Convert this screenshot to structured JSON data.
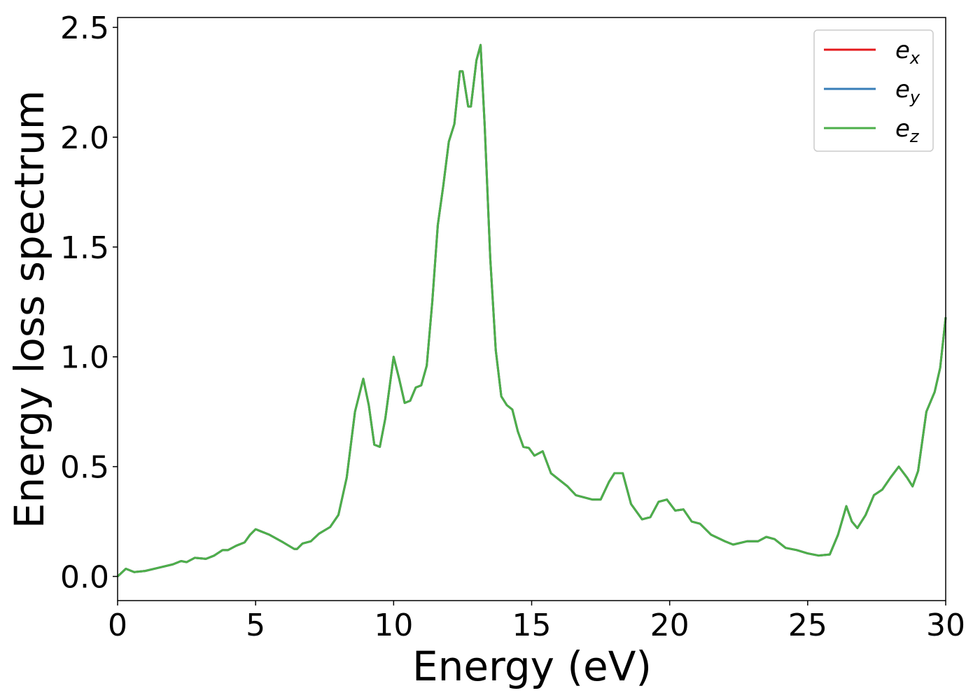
{
  "chart_data": {
    "type": "line",
    "xlabel": "Energy (eV)",
    "ylabel": "Energy loss spectrum",
    "x": [
      0,
      0.3,
      0.6,
      1.0,
      1.5,
      2.0,
      2.3,
      2.5,
      2.8,
      3.2,
      3.5,
      3.8,
      4.0,
      4.3,
      4.6,
      4.8,
      5.0,
      5.2,
      5.5,
      6.0,
      6.4,
      6.5,
      6.7,
      7.0,
      7.3,
      7.7,
      8.0,
      8.3,
      8.6,
      8.9,
      9.1,
      9.3,
      9.5,
      9.7,
      10.0,
      10.2,
      10.4,
      10.6,
      10.8,
      11.0,
      11.2,
      11.4,
      11.6,
      11.8,
      12.0,
      12.2,
      12.4,
      12.5,
      12.7,
      12.8,
      13.0,
      13.15,
      13.3,
      13.5,
      13.7,
      13.9,
      14.1,
      14.3,
      14.5,
      14.7,
      14.9,
      15.1,
      15.4,
      15.7,
      16.0,
      16.3,
      16.6,
      16.9,
      17.2,
      17.5,
      17.8,
      18.0,
      18.3,
      18.6,
      19.0,
      19.3,
      19.6,
      19.9,
      20.2,
      20.5,
      20.8,
      21.1,
      21.5,
      22.0,
      22.3,
      22.8,
      23.2,
      23.5,
      23.8,
      24.2,
      24.6,
      25.0,
      25.4,
      25.8,
      26.1,
      26.4,
      26.6,
      26.8,
      27.1,
      27.4,
      27.7,
      28.0,
      28.3,
      28.6,
      28.8,
      29.0,
      29.3,
      29.6,
      29.8,
      30.0
    ],
    "series": [
      {
        "name": "e_x",
        "color": "#e41a1c",
        "values": [
          0,
          0.035,
          0.02,
          0.025,
          0.04,
          0.055,
          0.07,
          0.065,
          0.085,
          0.08,
          0.095,
          0.12,
          0.12,
          0.14,
          0.155,
          0.19,
          0.215,
          0.205,
          0.19,
          0.155,
          0.125,
          0.125,
          0.15,
          0.16,
          0.195,
          0.225,
          0.28,
          0.45,
          0.75,
          0.9,
          0.78,
          0.6,
          0.59,
          0.72,
          1.0,
          0.9,
          0.79,
          0.8,
          0.86,
          0.87,
          0.96,
          1.25,
          1.6,
          1.78,
          1.98,
          2.06,
          2.3,
          2.3,
          2.14,
          2.14,
          2.35,
          2.42,
          2.05,
          1.45,
          1.03,
          0.82,
          0.78,
          0.76,
          0.66,
          0.59,
          0.585,
          0.55,
          0.57,
          0.47,
          0.44,
          0.41,
          0.37,
          0.36,
          0.35,
          0.35,
          0.43,
          0.47,
          0.47,
          0.33,
          0.26,
          0.27,
          0.34,
          0.35,
          0.3,
          0.305,
          0.25,
          0.24,
          0.19,
          0.16,
          0.145,
          0.16,
          0.16,
          0.18,
          0.17,
          0.13,
          0.12,
          0.105,
          0.095,
          0.1,
          0.19,
          0.32,
          0.25,
          0.22,
          0.28,
          0.37,
          0.395,
          0.45,
          0.5,
          0.45,
          0.41,
          0.48,
          0.75,
          0.84,
          0.95,
          1.18
        ]
      },
      {
        "name": "e_y",
        "color": "#377eb8",
        "values": [
          0,
          0.035,
          0.02,
          0.025,
          0.04,
          0.055,
          0.07,
          0.065,
          0.085,
          0.08,
          0.095,
          0.12,
          0.12,
          0.14,
          0.155,
          0.19,
          0.215,
          0.205,
          0.19,
          0.155,
          0.125,
          0.125,
          0.15,
          0.16,
          0.195,
          0.225,
          0.28,
          0.45,
          0.75,
          0.9,
          0.78,
          0.6,
          0.59,
          0.72,
          1.0,
          0.9,
          0.79,
          0.8,
          0.86,
          0.87,
          0.96,
          1.25,
          1.6,
          1.78,
          1.98,
          2.06,
          2.3,
          2.3,
          2.14,
          2.14,
          2.35,
          2.42,
          2.05,
          1.45,
          1.03,
          0.82,
          0.78,
          0.76,
          0.66,
          0.59,
          0.585,
          0.55,
          0.57,
          0.47,
          0.44,
          0.41,
          0.37,
          0.36,
          0.35,
          0.35,
          0.43,
          0.47,
          0.47,
          0.33,
          0.26,
          0.27,
          0.34,
          0.35,
          0.3,
          0.305,
          0.25,
          0.24,
          0.19,
          0.16,
          0.145,
          0.16,
          0.16,
          0.18,
          0.17,
          0.13,
          0.12,
          0.105,
          0.095,
          0.1,
          0.19,
          0.32,
          0.25,
          0.22,
          0.28,
          0.37,
          0.395,
          0.45,
          0.5,
          0.45,
          0.41,
          0.48,
          0.75,
          0.84,
          0.95,
          1.18
        ]
      },
      {
        "name": "e_z",
        "color": "#4daf4a",
        "values": [
          0,
          0.035,
          0.02,
          0.025,
          0.04,
          0.055,
          0.07,
          0.065,
          0.085,
          0.08,
          0.095,
          0.12,
          0.12,
          0.14,
          0.155,
          0.19,
          0.215,
          0.205,
          0.19,
          0.155,
          0.125,
          0.125,
          0.15,
          0.16,
          0.195,
          0.225,
          0.28,
          0.45,
          0.75,
          0.9,
          0.78,
          0.6,
          0.59,
          0.72,
          1.0,
          0.9,
          0.79,
          0.8,
          0.86,
          0.87,
          0.96,
          1.25,
          1.6,
          1.78,
          1.98,
          2.06,
          2.3,
          2.3,
          2.14,
          2.14,
          2.35,
          2.42,
          2.05,
          1.45,
          1.03,
          0.82,
          0.78,
          0.76,
          0.66,
          0.59,
          0.585,
          0.55,
          0.57,
          0.47,
          0.44,
          0.41,
          0.37,
          0.36,
          0.35,
          0.35,
          0.43,
          0.47,
          0.47,
          0.33,
          0.26,
          0.27,
          0.34,
          0.35,
          0.3,
          0.305,
          0.25,
          0.24,
          0.19,
          0.16,
          0.145,
          0.16,
          0.16,
          0.18,
          0.17,
          0.13,
          0.12,
          0.105,
          0.095,
          0.1,
          0.19,
          0.32,
          0.25,
          0.22,
          0.28,
          0.37,
          0.395,
          0.45,
          0.5,
          0.45,
          0.41,
          0.48,
          0.75,
          0.84,
          0.95,
          1.18
        ]
      }
    ],
    "xlim": [
      0,
      30
    ],
    "xticks": [
      0,
      5,
      10,
      15,
      20,
      25,
      30
    ],
    "ylim": [
      -0.11,
      2.545
    ],
    "yticks": [
      {
        "value": 0,
        "label": "0.0"
      },
      0.5,
      {
        "value": 1,
        "label": "1.0"
      },
      1.5,
      {
        "value": 2,
        "label": "2.0"
      },
      2.5
    ],
    "legend": "upper right",
    "grid": false
  }
}
